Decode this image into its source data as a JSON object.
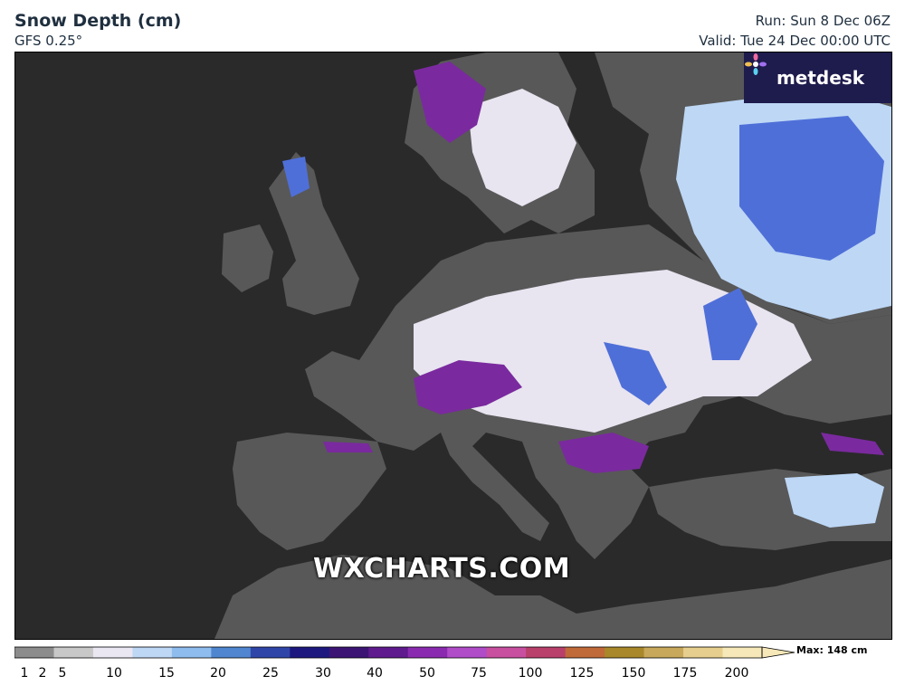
{
  "header": {
    "title": "Snow Depth (cm)",
    "model": "GFS 0.25°",
    "run": "Run: Sun 8 Dec 06Z",
    "valid": "Valid: Tue 24 Dec 00:00 UTC"
  },
  "branding": {
    "logo_text": "metdesk",
    "watermark": "WXCHARTS.COM"
  },
  "legend": {
    "max_label": "Max: 148 cm",
    "ticks": [
      "1",
      "2",
      "5",
      "10",
      "15",
      "20",
      "25",
      "30",
      "40",
      "50",
      "75",
      "100",
      "125",
      "150",
      "175",
      "200"
    ],
    "colors": [
      "#8c8c8c",
      "#c8c8c8",
      "#eae6f2",
      "#bdd7f5",
      "#8fbcee",
      "#4f86cf",
      "#3045a8",
      "#1c1880",
      "#3b1474",
      "#5f1a8e",
      "#8a2ab0",
      "#b04cc8",
      "#c84fa0",
      "#b8406a",
      "#c06a3a",
      "#a8882a",
      "#c8a85a",
      "#e6cf8e",
      "#f6e8b8"
    ]
  },
  "colors": {
    "ocean": "#2a2a2a",
    "land_bare": "#585858",
    "snow_light": "#e8e4f0",
    "snow_blue": "#4f6fd8",
    "snow_purple": "#7a2a9e",
    "logo_bg": "#1e1b4d"
  }
}
